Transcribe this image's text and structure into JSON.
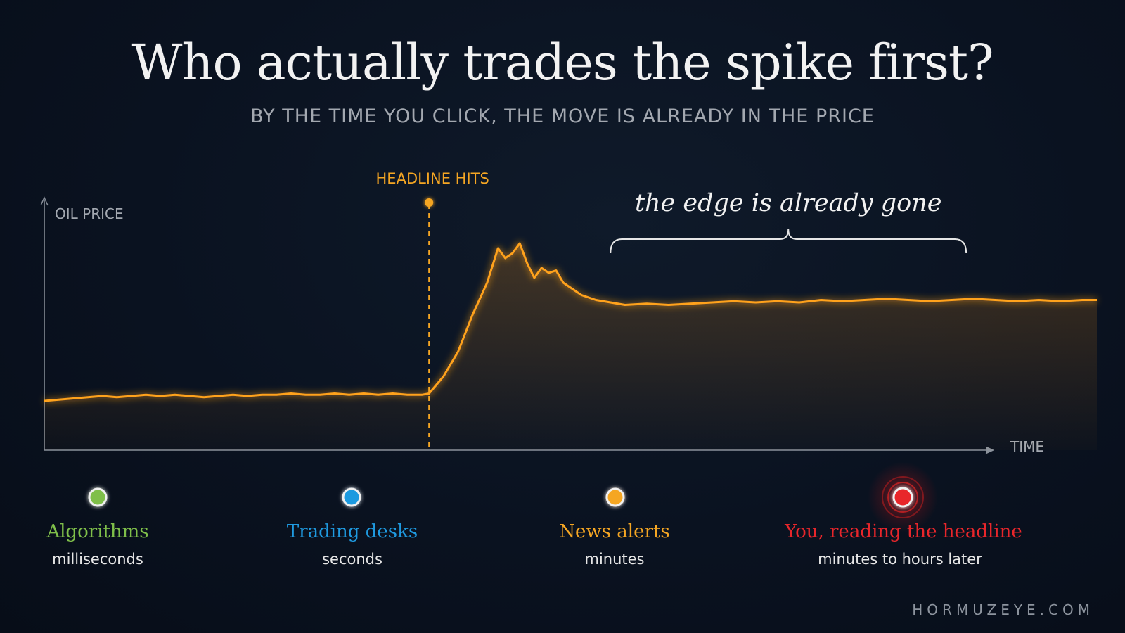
{
  "title": "Who actually trades the spike first?",
  "subtitle": "BY THE TIME YOU CLICK, THE MOVE IS ALREADY IN THE PRICE",
  "chart_data": {
    "type": "line",
    "ylabel": "OIL PRICE",
    "xlabel": "TIME",
    "event_label": "HEADLINE HITS",
    "event_x": 53,
    "annotation": "the edge is already gone",
    "annotation_range": [
      78,
      127
    ],
    "color": "#ffa21a",
    "xlim": [
      0,
      145
    ],
    "ylim": [
      0,
      100
    ],
    "series": [
      {
        "x": [
          0,
          2,
          4,
          6,
          8,
          10,
          12,
          14,
          16,
          18,
          20,
          22,
          24,
          26,
          28,
          30,
          32,
          34,
          36,
          38,
          40,
          42,
          44,
          46,
          48,
          50,
          52,
          53,
          55,
          57,
          59,
          61,
          62.5,
          63.5,
          64.5,
          65.5,
          66.5,
          67.5,
          68.5,
          69.5,
          70.5,
          71.5,
          72.5,
          74,
          76,
          78,
          80,
          83,
          86,
          89,
          92,
          95,
          98,
          101,
          104,
          107,
          110,
          113,
          116,
          119,
          122,
          125,
          128,
          131,
          134,
          137,
          140,
          143,
          145
        ],
        "y": [
          20,
          20.5,
          21,
          21.5,
          22,
          21.5,
          22,
          22.5,
          22,
          22.5,
          22,
          21.5,
          22,
          22.5,
          22,
          22.5,
          22.5,
          23,
          22.5,
          22.5,
          23,
          22.5,
          23,
          22.5,
          23,
          22.5,
          22.5,
          23,
          30,
          40,
          55,
          68,
          82,
          78,
          80,
          84,
          76,
          70,
          74,
          72,
          73,
          68,
          66,
          63,
          61,
          60,
          59,
          59.5,
          59,
          59.5,
          60,
          60.5,
          60,
          60.5,
          60,
          61,
          60.5,
          61,
          61.5,
          61,
          60.5,
          61,
          61.5,
          61,
          60.5,
          61,
          60.5,
          61,
          61
        ]
      }
    ]
  },
  "timeline": [
    {
      "label": "Algorithms",
      "sub": "milliseconds",
      "color": "#7fbf4a"
    },
    {
      "label": "Trading desks",
      "sub": "seconds",
      "color": "#1f9ae0"
    },
    {
      "label": "News alerts",
      "sub": "minutes",
      "color": "#f5a623"
    },
    {
      "label": "You, reading the headline",
      "sub": "minutes to hours later",
      "color": "#e8262b"
    }
  ],
  "footer": "HORMUZEYE.COM"
}
